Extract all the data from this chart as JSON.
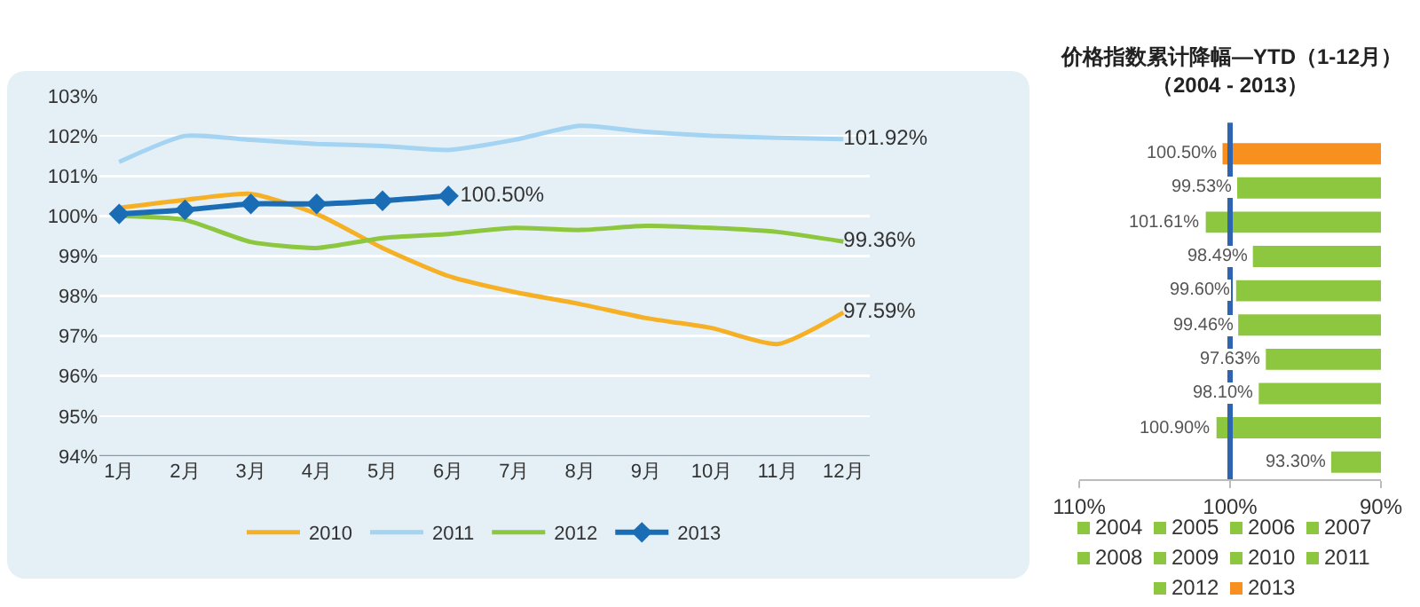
{
  "chart_data": [
    {
      "type": "line",
      "categories": [
        "1月",
        "2月",
        "3月",
        "4月",
        "5月",
        "6月",
        "7月",
        "8月",
        "9月",
        "10月",
        "11月",
        "12月"
      ],
      "ylim": [
        94,
        103
      ],
      "yticks": [
        {
          "value": 94,
          "label": "94%"
        },
        {
          "value": 95,
          "label": "95%"
        },
        {
          "value": 96,
          "label": "96%"
        },
        {
          "value": 97,
          "label": "97%"
        },
        {
          "value": 98,
          "label": "98%"
        },
        {
          "value": 99,
          "label": "99%"
        },
        {
          "value": 100,
          "label": "100%"
        },
        {
          "value": 101,
          "label": "101%"
        },
        {
          "value": 102,
          "label": "102%"
        },
        {
          "value": 103,
          "label": "103%"
        }
      ],
      "grid": "y",
      "legend": "bottom",
      "series": [
        {
          "name": "2010",
          "color": "#f5b025",
          "marker": "none",
          "values": [
            100.2,
            100.4,
            100.55,
            100.05,
            99.2,
            98.5,
            98.1,
            97.8,
            97.45,
            97.2,
            96.8,
            97.59
          ],
          "value_labels": [
            null,
            null,
            null,
            null,
            null,
            null,
            null,
            null,
            null,
            null,
            null,
            "97.59%"
          ]
        },
        {
          "name": "2011",
          "color": "#a5d3f2",
          "marker": "none",
          "values": [
            101.35,
            102.0,
            101.9,
            101.8,
            101.75,
            101.65,
            101.9,
            102.25,
            102.1,
            102.0,
            101.95,
            101.92
          ],
          "value_labels": [
            null,
            null,
            null,
            null,
            null,
            null,
            null,
            null,
            null,
            null,
            null,
            "101.92%"
          ]
        },
        {
          "name": "2012",
          "color": "#8dc63f",
          "marker": "none",
          "values": [
            100.0,
            99.9,
            99.35,
            99.2,
            99.45,
            99.55,
            99.7,
            99.65,
            99.75,
            99.7,
            99.6,
            99.36
          ],
          "value_labels": [
            null,
            null,
            null,
            null,
            null,
            null,
            null,
            null,
            null,
            null,
            null,
            "99.36%"
          ]
        },
        {
          "name": "2013",
          "color": "#1a6db5",
          "marker": "diamond",
          "values": [
            100.05,
            100.15,
            100.3,
            100.3,
            100.38,
            100.5,
            null,
            null,
            null,
            null,
            null,
            null
          ],
          "value_labels": [
            null,
            null,
            null,
            null,
            null,
            "100.50%",
            null,
            null,
            null,
            null,
            null,
            null
          ]
        }
      ]
    },
    {
      "type": "bar",
      "orientation": "horizontal",
      "title": "价格指数累计降幅—YTD（1-12月）",
      "subtitle": "（2004 - 2013）",
      "categories": [
        null,
        null,
        null,
        null,
        null,
        null,
        null,
        null,
        null,
        null
      ],
      "xlim": [
        110,
        90
      ],
      "xticks": [
        {
          "value": 110,
          "label": "110%"
        },
        {
          "value": 100,
          "label": "100%"
        },
        {
          "value": 90,
          "label": "90%"
        }
      ],
      "tick_labels": "x",
      "legend": "bottom",
      "ref_lines": [
        {
          "axis": "x",
          "value": 100,
          "color": "#2e64b0"
        }
      ],
      "series": [
        {
          "name": "2004",
          "color": "#8dc63f",
          "values": [
            null,
            null,
            null,
            null,
            null,
            null,
            null,
            null,
            null,
            93.3
          ],
          "value_labels": [
            null,
            null,
            null,
            null,
            null,
            null,
            null,
            null,
            null,
            "93.30%"
          ]
        },
        {
          "name": "2005",
          "color": "#8dc63f",
          "values": [
            null,
            null,
            null,
            null,
            null,
            null,
            null,
            null,
            100.9,
            null
          ],
          "value_labels": [
            null,
            null,
            null,
            null,
            null,
            null,
            null,
            null,
            "100.90%",
            null
          ]
        },
        {
          "name": "2006",
          "color": "#8dc63f",
          "values": [
            null,
            null,
            null,
            null,
            null,
            null,
            null,
            98.1,
            null,
            null
          ],
          "value_labels": [
            null,
            null,
            null,
            null,
            null,
            null,
            null,
            "98.10%",
            null,
            null
          ]
        },
        {
          "name": "2007",
          "color": "#8dc63f",
          "values": [
            null,
            null,
            null,
            null,
            null,
            null,
            97.63,
            null,
            null,
            null
          ],
          "value_labels": [
            null,
            null,
            null,
            null,
            null,
            null,
            "97.63%",
            null,
            null,
            null
          ]
        },
        {
          "name": "2008",
          "color": "#8dc63f",
          "values": [
            null,
            null,
            null,
            null,
            null,
            99.46,
            null,
            null,
            null,
            null
          ],
          "value_labels": [
            null,
            null,
            null,
            null,
            null,
            "99.46%",
            null,
            null,
            null,
            null
          ]
        },
        {
          "name": "2009",
          "color": "#8dc63f",
          "values": [
            null,
            null,
            null,
            null,
            99.6,
            null,
            null,
            null,
            null,
            null
          ],
          "value_labels": [
            null,
            null,
            null,
            null,
            "99.60%",
            null,
            null,
            null,
            null,
            null
          ]
        },
        {
          "name": "2010",
          "color": "#8dc63f",
          "values": [
            null,
            null,
            null,
            98.49,
            null,
            null,
            null,
            null,
            null,
            null
          ],
          "value_labels": [
            null,
            null,
            null,
            "98.49%",
            null,
            null,
            null,
            null,
            null,
            null
          ]
        },
        {
          "name": "2011",
          "color": "#8dc63f",
          "values": [
            null,
            null,
            101.61,
            null,
            null,
            null,
            null,
            null,
            null,
            null
          ],
          "value_labels": [
            null,
            null,
            "101.61%",
            null,
            null,
            null,
            null,
            null,
            null,
            null
          ]
        },
        {
          "name": "2012",
          "color": "#8dc63f",
          "values": [
            null,
            99.53,
            null,
            null,
            null,
            null,
            null,
            null,
            null,
            null
          ],
          "value_labels": [
            null,
            "99.53%",
            null,
            null,
            null,
            null,
            null,
            null,
            null,
            null
          ]
        },
        {
          "name": "2013",
          "color": "#f7901e",
          "values": [
            100.5,
            null,
            null,
            null,
            null,
            null,
            null,
            null,
            null,
            null
          ],
          "value_labels": [
            "100.50%",
            null,
            null,
            null,
            null,
            null,
            null,
            null,
            null,
            null
          ]
        }
      ]
    }
  ]
}
